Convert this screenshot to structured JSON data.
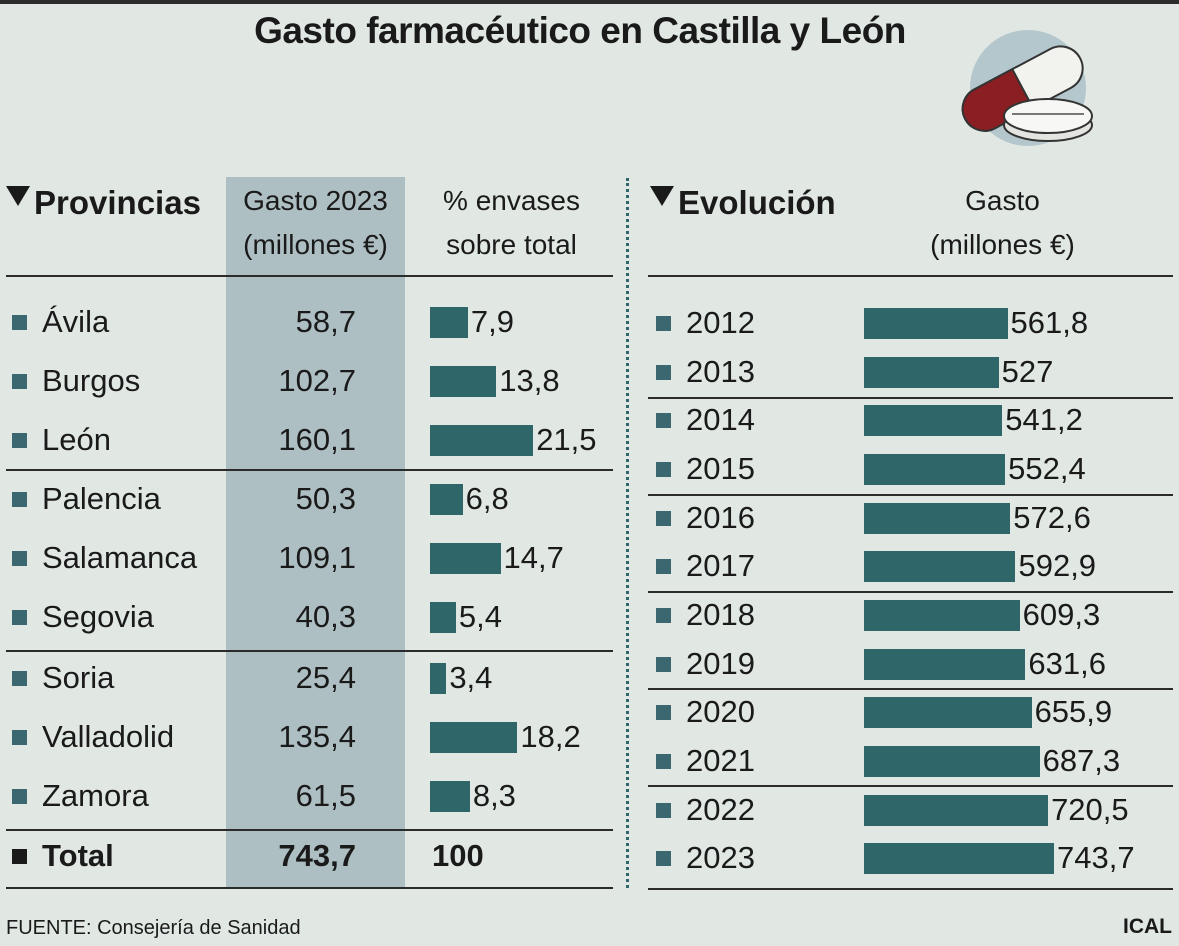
{
  "title": "Gasto farmacéutico en Castilla y León",
  "icon": "pills-icon",
  "left_table": {
    "header_provincias": "Provincias",
    "header_gasto_line1": "Gasto 2023",
    "header_gasto_line2": "(millones €)",
    "header_envases_line1": "% envases",
    "header_envases_line2": "sobre total",
    "rows": [
      {
        "provincia": "Ávila",
        "gasto": "58,7",
        "envases": "7,9"
      },
      {
        "provincia": "Burgos",
        "gasto": "102,7",
        "envases": "13,8"
      },
      {
        "provincia": "León",
        "gasto": "160,1",
        "envases": "21,5"
      },
      {
        "provincia": "Palencia",
        "gasto": "50,3",
        "envases": "6,8"
      },
      {
        "provincia": "Salamanca",
        "gasto": "109,1",
        "envases": "14,7"
      },
      {
        "provincia": "Segovia",
        "gasto": "40,3",
        "envases": "5,4"
      },
      {
        "provincia": "Soria",
        "gasto": "25,4",
        "envases": "3,4"
      },
      {
        "provincia": "Valladolid",
        "gasto": "135,4",
        "envases": "18,2"
      },
      {
        "provincia": "Zamora",
        "gasto": "61,5",
        "envases": "8,3"
      }
    ],
    "total": {
      "provincia": "Total",
      "gasto": "743,7",
      "envases": "100"
    }
  },
  "right_table": {
    "header_evolucion": "Evolución",
    "header_gasto_line1": "Gasto",
    "header_gasto_line2": "(millones €)",
    "rows": [
      {
        "year": "2012",
        "label": "561,8"
      },
      {
        "year": "2013",
        "label": "527"
      },
      {
        "year": "2014",
        "label": "541,2"
      },
      {
        "year": "2015",
        "label": "552,4"
      },
      {
        "year": "2016",
        "label": "572,6"
      },
      {
        "year": "2017",
        "label": "592,9"
      },
      {
        "year": "2018",
        "label": "609,3"
      },
      {
        "year": "2019",
        "label": "631,6"
      },
      {
        "year": "2020",
        "label": "655,9"
      },
      {
        "year": "2021",
        "label": "687,3"
      },
      {
        "year": "2022",
        "label": "720,5"
      },
      {
        "year": "2023",
        "label": "743,7"
      }
    ]
  },
  "footer": {
    "source": "FUENTE: Consejería de Sanidad",
    "credit": "ICAL"
  },
  "colors": {
    "bar": "#2e6669",
    "bullet": "#3a6770",
    "highlight_column": "#aebfc3",
    "background": "#e1e8e4"
  },
  "chart_data": [
    {
      "type": "table",
      "title": "Gasto farmacéutico en Castilla y León",
      "columns": [
        "Provincias",
        "Gasto 2023 (millones €)",
        "% envases sobre total"
      ],
      "categories": [
        "Ávila",
        "Burgos",
        "León",
        "Palencia",
        "Salamanca",
        "Segovia",
        "Soria",
        "Valladolid",
        "Zamora"
      ],
      "series": [
        {
          "name": "Gasto 2023 (millones €)",
          "values": [
            58.7,
            102.7,
            160.1,
            50.3,
            109.1,
            40.3,
            25.4,
            135.4,
            61.5
          ],
          "total": 743.7
        },
        {
          "name": "% envases sobre total",
          "values": [
            7.9,
            13.8,
            21.5,
            6.8,
            14.7,
            5.4,
            3.4,
            18.2,
            8.3
          ],
          "total": 100
        }
      ]
    },
    {
      "type": "bar",
      "orientation": "horizontal",
      "title": "Evolución",
      "ylabel": "Gasto (millones €)",
      "categories": [
        "2012",
        "2013",
        "2014",
        "2015",
        "2016",
        "2017",
        "2018",
        "2019",
        "2020",
        "2021",
        "2022",
        "2023"
      ],
      "values": [
        561.8,
        527,
        541.2,
        552.4,
        572.6,
        592.9,
        609.3,
        631.6,
        655.9,
        687.3,
        720.5,
        743.7
      ]
    }
  ]
}
